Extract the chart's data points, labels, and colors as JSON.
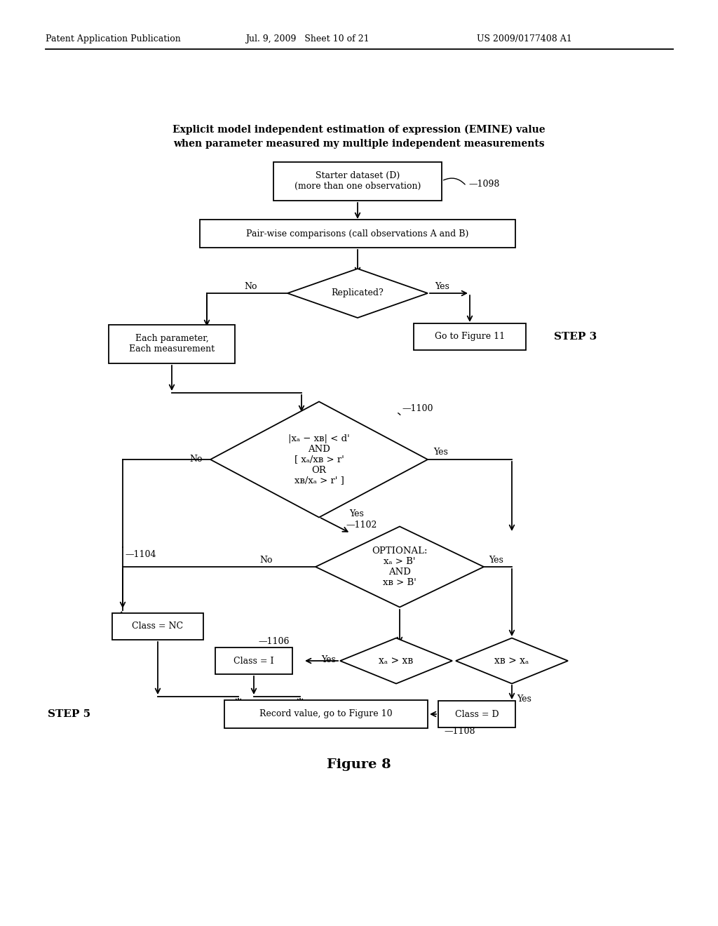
{
  "bg_color": "#ffffff",
  "header_left": "Patent Application Publication",
  "header_mid": "Jul. 9, 2009   Sheet 10 of 21",
  "header_right": "US 2009/0177408 A1",
  "title_line1": "Explicit model independent estimation of expression (EMINE) value",
  "title_line2": "when parameter measured my multiple independent measurements",
  "figure_label": "Figure 8"
}
